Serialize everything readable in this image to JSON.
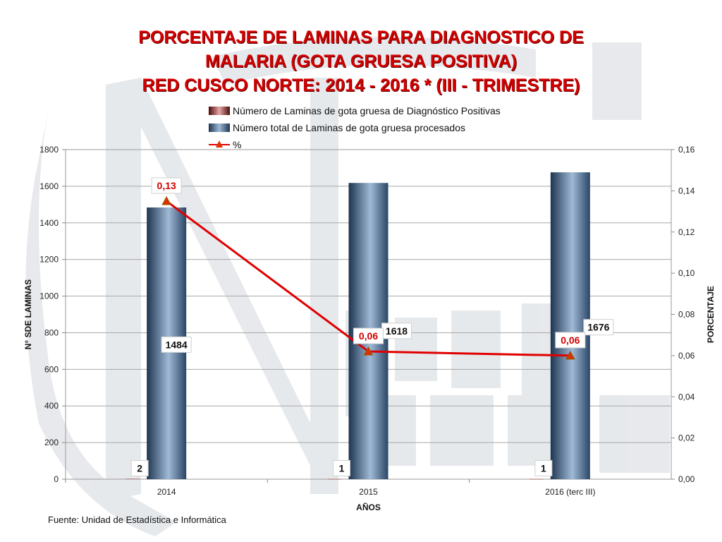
{
  "title_lines": [
    "PORCENTAJE DE LAMINAS PARA DIAGNOSTICO DE",
    "MALARIA (GOTA GRUESA POSITIVA)",
    "RED CUSCO NORTE: 2014 - 2016 * (III - TRIMESTRE)"
  ],
  "legend": {
    "positive": "Número de Laminas de gota gruesa de Diagnóstico Positivas",
    "total": "Número total de Laminas de gota gruesa procesados",
    "percent": "%"
  },
  "source": "Fuente: Unidad de Estadística e Informática",
  "colors": {
    "title": "#d40000",
    "line": "#e00000",
    "marker": "#e03000",
    "bar_dark": "#1e3550",
    "bar_light": "#9fb9d6"
  },
  "chart_data": {
    "type": "bar",
    "categories": [
      "2014",
      "2015",
      "2016 (terc III)"
    ],
    "series": [
      {
        "name": "Número de Laminas de gota gruesa de Diagnóstico Positivas",
        "type": "bar",
        "axis": "left",
        "values": [
          2,
          1,
          1
        ],
        "labels": [
          "2",
          "1",
          "1"
        ]
      },
      {
        "name": "Número total de Laminas de gota gruesa procesados",
        "type": "bar",
        "axis": "left",
        "values": [
          1484,
          1618,
          1676
        ],
        "labels": [
          "1484",
          "1618",
          "1676"
        ]
      },
      {
        "name": "%",
        "type": "line",
        "axis": "right",
        "values": [
          0.135,
          0.062,
          0.06
        ],
        "labels": [
          "0,13",
          "0,06",
          "0,06"
        ]
      }
    ],
    "xlabel": "AÑOS",
    "ylabel": "N° SDE LAMINAS",
    "y2label": "PORCENTAJE",
    "ylim": [
      0,
      1800
    ],
    "y2lim": [
      0,
      0.16
    ],
    "yticks": [
      "0",
      "200",
      "400",
      "600",
      "800",
      "1000",
      "1200",
      "1400",
      "1600",
      "1800"
    ],
    "y2ticks": [
      "0,00",
      "0,02",
      "0,04",
      "0,06",
      "0,08",
      "0,10",
      "0,12",
      "0,14",
      "0,16"
    ],
    "grid": true,
    "legend_position": "top"
  }
}
